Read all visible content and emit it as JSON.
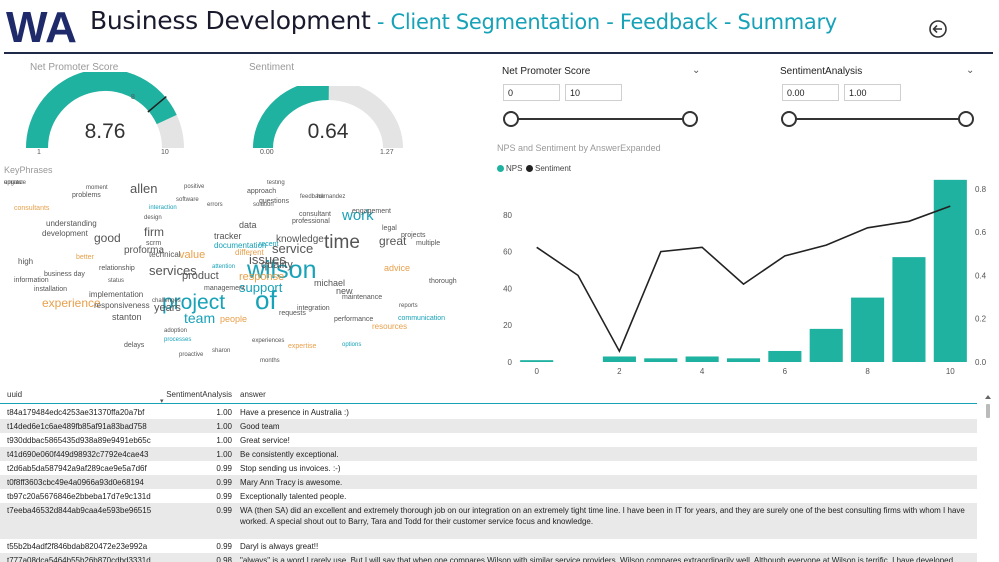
{
  "header": {
    "logo_text": "WA",
    "title_main": "Business Development",
    "title_sub": " - Client Segmentation - Feedback - Summary",
    "back_icon": "back-arrow-icon"
  },
  "gauges": {
    "nps": {
      "label": "Net Promoter Score",
      "value": "8.76",
      "value_num": 8.76,
      "min": "1",
      "max": "10",
      "target": "8",
      "fill_color": "#20b2a0"
    },
    "sentiment": {
      "label": "Sentiment",
      "value": "0.64",
      "value_num": 0.64,
      "min": "0.00",
      "max": "1.27"
    }
  },
  "slicers": {
    "nps": {
      "title": "Net Promoter Score",
      "min_value": "0",
      "max_value": "10"
    },
    "sentiment": {
      "title": "SentimentAnalysis",
      "min_value": "0.00",
      "max_value": "1.00"
    }
  },
  "keyphrases_label": "KeyPhrases",
  "wordcloud": [
    {
      "t": "wilson",
      "c": "#17a2b8",
      "s": 25
    },
    {
      "t": "project",
      "c": "#17a2b8",
      "s": 21
    },
    {
      "t": "of",
      "c": "#17a2b8",
      "s": 26
    },
    {
      "t": "time",
      "c": "#555",
      "s": 19
    },
    {
      "t": "work",
      "c": "#17a2b8",
      "s": 15
    },
    {
      "t": "team",
      "c": "#17a2b8",
      "s": 14
    },
    {
      "t": "services",
      "c": "#555",
      "s": 13
    },
    {
      "t": "service",
      "c": "#555",
      "s": 13
    },
    {
      "t": "issues",
      "c": "#555",
      "s": 13
    },
    {
      "t": "support",
      "c": "#17a2b8",
      "s": 13
    },
    {
      "t": "great",
      "c": "#555",
      "s": 12
    },
    {
      "t": "experience",
      "c": "#e8a04b",
      "s": 12
    },
    {
      "t": "allen",
      "c": "#555",
      "s": 13
    },
    {
      "t": "firm",
      "c": "#555",
      "s": 12
    },
    {
      "t": "good",
      "c": "#555",
      "s": 12
    },
    {
      "t": "years",
      "c": "#555",
      "s": 11
    },
    {
      "t": "quality",
      "c": "#555",
      "s": 11
    },
    {
      "t": "value",
      "c": "#e8a04b",
      "s": 11
    },
    {
      "t": "product",
      "c": "#555",
      "s": 11
    },
    {
      "t": "response",
      "c": "#e8a04b",
      "s": 11
    },
    {
      "t": "knowledge",
      "c": "#555",
      "s": 10
    },
    {
      "t": "proforma",
      "c": "#555",
      "s": 10
    },
    {
      "t": "michael",
      "c": "#555",
      "s": 9
    },
    {
      "t": "advice",
      "c": "#e8a04b",
      "s": 9
    },
    {
      "t": "stanton",
      "c": "#555",
      "s": 9
    },
    {
      "t": "people",
      "c": "#e8a04b",
      "s": 9
    },
    {
      "t": "data",
      "c": "#555",
      "s": 9
    },
    {
      "t": "implementation",
      "c": "#555",
      "s": 8
    },
    {
      "t": "responsiveness",
      "c": "#555",
      "s": 8
    },
    {
      "t": "tracker",
      "c": "#555",
      "s": 9
    },
    {
      "t": "documentation",
      "c": "#17a2b8",
      "s": 8
    },
    {
      "t": "understanding",
      "c": "#555",
      "s": 8
    },
    {
      "t": "development",
      "c": "#555",
      "s": 8
    },
    {
      "t": "technical",
      "c": "#555",
      "s": 8
    },
    {
      "t": "different",
      "c": "#e8a04b",
      "s": 8
    },
    {
      "t": "resources",
      "c": "#e8a04b",
      "s": 8
    },
    {
      "t": "new",
      "c": "#555",
      "s": 9
    },
    {
      "t": "high",
      "c": "#555",
      "s": 8
    },
    {
      "t": "consultants",
      "c": "#e8a04b",
      "s": 7
    },
    {
      "t": "problems",
      "c": "#555",
      "s": 7
    },
    {
      "t": "better",
      "c": "#e8a04b",
      "s": 7
    },
    {
      "t": "relationship",
      "c": "#555",
      "s": 7
    },
    {
      "t": "information",
      "c": "#555",
      "s": 7
    },
    {
      "t": "business day",
      "c": "#555",
      "s": 7
    },
    {
      "t": "installation",
      "c": "#555",
      "s": 7
    },
    {
      "t": "approach",
      "c": "#555",
      "s": 7
    },
    {
      "t": "questions",
      "c": "#555",
      "s": 7
    },
    {
      "t": "engagement",
      "c": "#555",
      "s": 7
    },
    {
      "t": "projects",
      "c": "#555",
      "s": 7
    },
    {
      "t": "communication",
      "c": "#17a2b8",
      "s": 7
    },
    {
      "t": "maintenance",
      "c": "#555",
      "s": 7
    },
    {
      "t": "integration",
      "c": "#555",
      "s": 7
    },
    {
      "t": "performance",
      "c": "#555",
      "s": 7
    },
    {
      "t": "professional",
      "c": "#555",
      "s": 7
    },
    {
      "t": "multiple",
      "c": "#555",
      "s": 7
    },
    {
      "t": "consultant",
      "c": "#555",
      "s": 7
    },
    {
      "t": "thorough",
      "c": "#555",
      "s": 7
    },
    {
      "t": "requests",
      "c": "#555",
      "s": 7
    },
    {
      "t": "attention",
      "c": "#17a2b8",
      "s": 6
    },
    {
      "t": "management",
      "c": "#555",
      "s": 7
    },
    {
      "t": "recent",
      "c": "#17a2b8",
      "s": 7
    },
    {
      "t": "scrm",
      "c": "#555",
      "s": 7
    },
    {
      "t": "legal",
      "c": "#555",
      "s": 7
    },
    {
      "t": "delays",
      "c": "#555",
      "s": 7
    },
    {
      "t": "options",
      "c": "#17a2b8",
      "s": 6
    },
    {
      "t": "expertise",
      "c": "#e8a04b",
      "s": 7
    },
    {
      "t": "sharon",
      "c": "#555",
      "s": 6
    },
    {
      "t": "months",
      "c": "#555",
      "s": 6
    },
    {
      "t": "proactive",
      "c": "#555",
      "s": 6
    },
    {
      "t": "challenges",
      "c": "#555",
      "s": 6
    },
    {
      "t": "adoption",
      "c": "#555",
      "s": 6
    },
    {
      "t": "experiences",
      "c": "#555",
      "s": 6
    },
    {
      "t": "solution",
      "c": "#555",
      "s": 6
    },
    {
      "t": "interaction",
      "c": "#17a2b8",
      "s": 6
    },
    {
      "t": "feedback",
      "c": "#555",
      "s": 6
    },
    {
      "t": "software",
      "c": "#555",
      "s": 6
    },
    {
      "t": "errors",
      "c": "#555",
      "s": 6
    },
    {
      "t": "testing",
      "c": "#555",
      "s": 6
    },
    {
      "t": "hernandez",
      "c": "#555",
      "s": 6
    },
    {
      "t": "moment",
      "c": "#555",
      "s": 6
    },
    {
      "t": "positive",
      "c": "#555",
      "s": 6
    },
    {
      "t": "design",
      "c": "#555",
      "s": 6
    },
    {
      "t": "processes",
      "c": "#17a2b8",
      "s": 6
    },
    {
      "t": "status",
      "c": "#555",
      "s": 6
    },
    {
      "t": "reports",
      "c": "#555",
      "s": 6
    },
    {
      "t": "emails",
      "c": "#555",
      "s": 6
    },
    {
      "t": "upgrade",
      "c": "#555",
      "s": 6
    }
  ],
  "chart": {
    "title": "NPS and Sentiment by AnswerExpanded",
    "legend": [
      {
        "name": "NPS",
        "color": "#20b2a0"
      },
      {
        "name": "Sentiment",
        "color": "#222222"
      }
    ]
  },
  "chart_data": {
    "type": "bar",
    "title": "NPS and Sentiment by AnswerExpanded",
    "x": [
      0,
      1,
      2,
      3,
      4,
      5,
      6,
      7,
      8,
      9,
      10
    ],
    "x_ticks": [
      "0",
      "2",
      "4",
      "6",
      "8",
      "10"
    ],
    "series": [
      {
        "name": "NPS",
        "type": "bar",
        "axis": "left",
        "values": [
          1,
          0,
          3,
          2,
          3,
          2,
          6,
          18,
          35,
          57,
          99
        ]
      },
      {
        "name": "Sentiment",
        "type": "line",
        "axis": "right",
        "values": [
          0.53,
          0.4,
          0.05,
          0.51,
          0.53,
          0.36,
          0.49,
          0.54,
          0.62,
          0.65,
          0.72
        ]
      }
    ],
    "y_left_ticks": [
      "0",
      "20",
      "40",
      "60",
      "80"
    ],
    "y_left_range": [
      0,
      100
    ],
    "y_right_ticks": [
      "0.0",
      "0.2",
      "0.4",
      "0.6",
      "0.8"
    ],
    "y_right_range": [
      0,
      0.85
    ]
  },
  "table": {
    "columns": [
      "uuid",
      "SentimentAnalysis",
      "answer"
    ],
    "rows": [
      {
        "uuid": "t84a179484edc4253ae31370ffa20a7bf",
        "sent": "1.00",
        "answer": "Have a presence in Australia :)"
      },
      {
        "uuid": "t14ded6e1c6ae489fb85af91a83bad758",
        "sent": "1.00",
        "answer": "Good team"
      },
      {
        "uuid": "t930ddbac5865435d938a89e9491eb65c",
        "sent": "1.00",
        "answer": "Great service!"
      },
      {
        "uuid": "t41d690e060f449d98932c7792e4cae43",
        "sent": "1.00",
        "answer": "Be consistently exceptional."
      },
      {
        "uuid": "t2d6ab5da587942a9af289cae9e5a7d6f",
        "sent": "0.99",
        "answer": "Stop sending us invoices. :-)"
      },
      {
        "uuid": "t0f8ff3603cbc49e4a0966a93d0e68194",
        "sent": "0.99",
        "answer": "Mary Ann Tracy is awesome."
      },
      {
        "uuid": "tb97c20a5676846e2bbeba17d7e9c131d",
        "sent": "0.99",
        "answer": "Exceptionally talented people."
      },
      {
        "uuid": "t7eeba46532d844ab9caa4e593be96515",
        "sent": "0.99",
        "answer": "WA (then SA) did an excellent and extremely thorough job on our integration on an extremely tight time line. I have been in IT for years, and they are surely one of the best consulting firms with whom I have worked. A special shout out to Barry, Tara and Todd for their customer service focus and knowledge."
      },
      {
        "uuid": "t55b2b4adf2f846bdab820472e23e992a",
        "sent": "0.99",
        "answer": "Daryl is always great!!"
      },
      {
        "uuid": "t777a08dca5464b55b26b870cdbd3331d",
        "sent": "0.98",
        "answer": "\"always\" is a word I rarely use. But I will say that when one compares Wilson with similar service providers, Wilson compares extraordinarily well. Although everyone at Wilson is terrific, I have developed great admiration and respect for Shishir in particular; he is an amazing professional on many levels and a delight to work with. I've encountered very few people with Shishir's combination"
      }
    ]
  }
}
